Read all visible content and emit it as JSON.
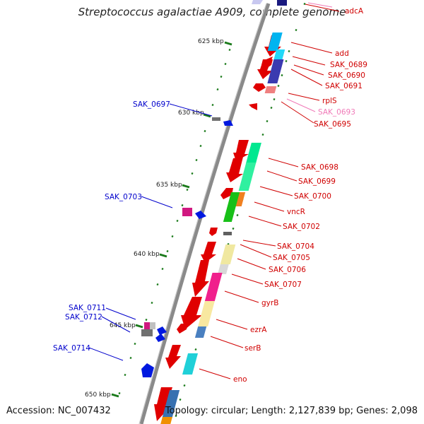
{
  "title": "Streptococcus agalactiae A909, complete genome",
  "footer": {
    "accession": "Accession: NC_007432",
    "summary": "Topology: circular; Length: 2,127,839 bp; Genes: 2,098"
  },
  "ticks": [
    "625 kbp",
    "630 kbp",
    "635 kbp",
    "640 kbp",
    "645 kbp",
    "650 kbp"
  ],
  "genes_forward": [
    "adcA",
    "add",
    "SAK_0689",
    "SAK_0690",
    "SAK_0691",
    "rplS",
    "SAK_0693",
    "SAK_0695",
    "SAK_0698",
    "SAK_0699",
    "SAK_0700",
    "vncR",
    "SAK_0702",
    "SAK_0704",
    "SAK_0705",
    "SAK_0706",
    "SAK_0707",
    "gyrB",
    "ezrA",
    "serB",
    "eno"
  ],
  "genes_reverse": [
    "SAK_0697",
    "SAK_0703",
    "SAK_0711",
    "SAK_0712",
    "SAK_0714"
  ],
  "colors": {
    "forward_label": "#d00000",
    "faded_label": "#f07ab8",
    "reverse_label": "#0000cc",
    "backbone": "#8a8a8a",
    "tick": "#1a7a1a",
    "gene_red": "#e00000",
    "gene_blue": "#0018e0"
  }
}
